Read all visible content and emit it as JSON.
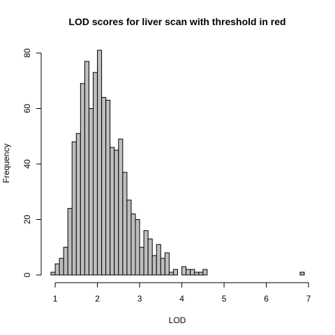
{
  "chart_data": {
    "type": "bar",
    "title": "LOD scores for liver scan with threshold in red",
    "xlabel": "LOD",
    "ylabel": "Frequency",
    "xlim": [
      0.9,
      6.9
    ],
    "ylim": [
      0,
      81
    ],
    "x_ticks": [
      1,
      2,
      3,
      4,
      5,
      6,
      7
    ],
    "y_ticks": [
      0,
      20,
      40,
      60,
      80
    ],
    "bin_width": 0.1,
    "bin_start": 0.9,
    "values": [
      1,
      4,
      6,
      10,
      24,
      48,
      51,
      69,
      77,
      60,
      73,
      81,
      64,
      63,
      46,
      45,
      49,
      37,
      27,
      22,
      20,
      10,
      16,
      13,
      7,
      11,
      6,
      8,
      1,
      2,
      0,
      3,
      2,
      2,
      1,
      1,
      2,
      0,
      0,
      0,
      0,
      0,
      0,
      0,
      0,
      0,
      0,
      0,
      0,
      0,
      0,
      0,
      0,
      0,
      0,
      0,
      0,
      0,
      0,
      1
    ],
    "bar_fill": "#bebebe",
    "bar_stroke": "#000000",
    "grid": false,
    "legend": "none"
  }
}
